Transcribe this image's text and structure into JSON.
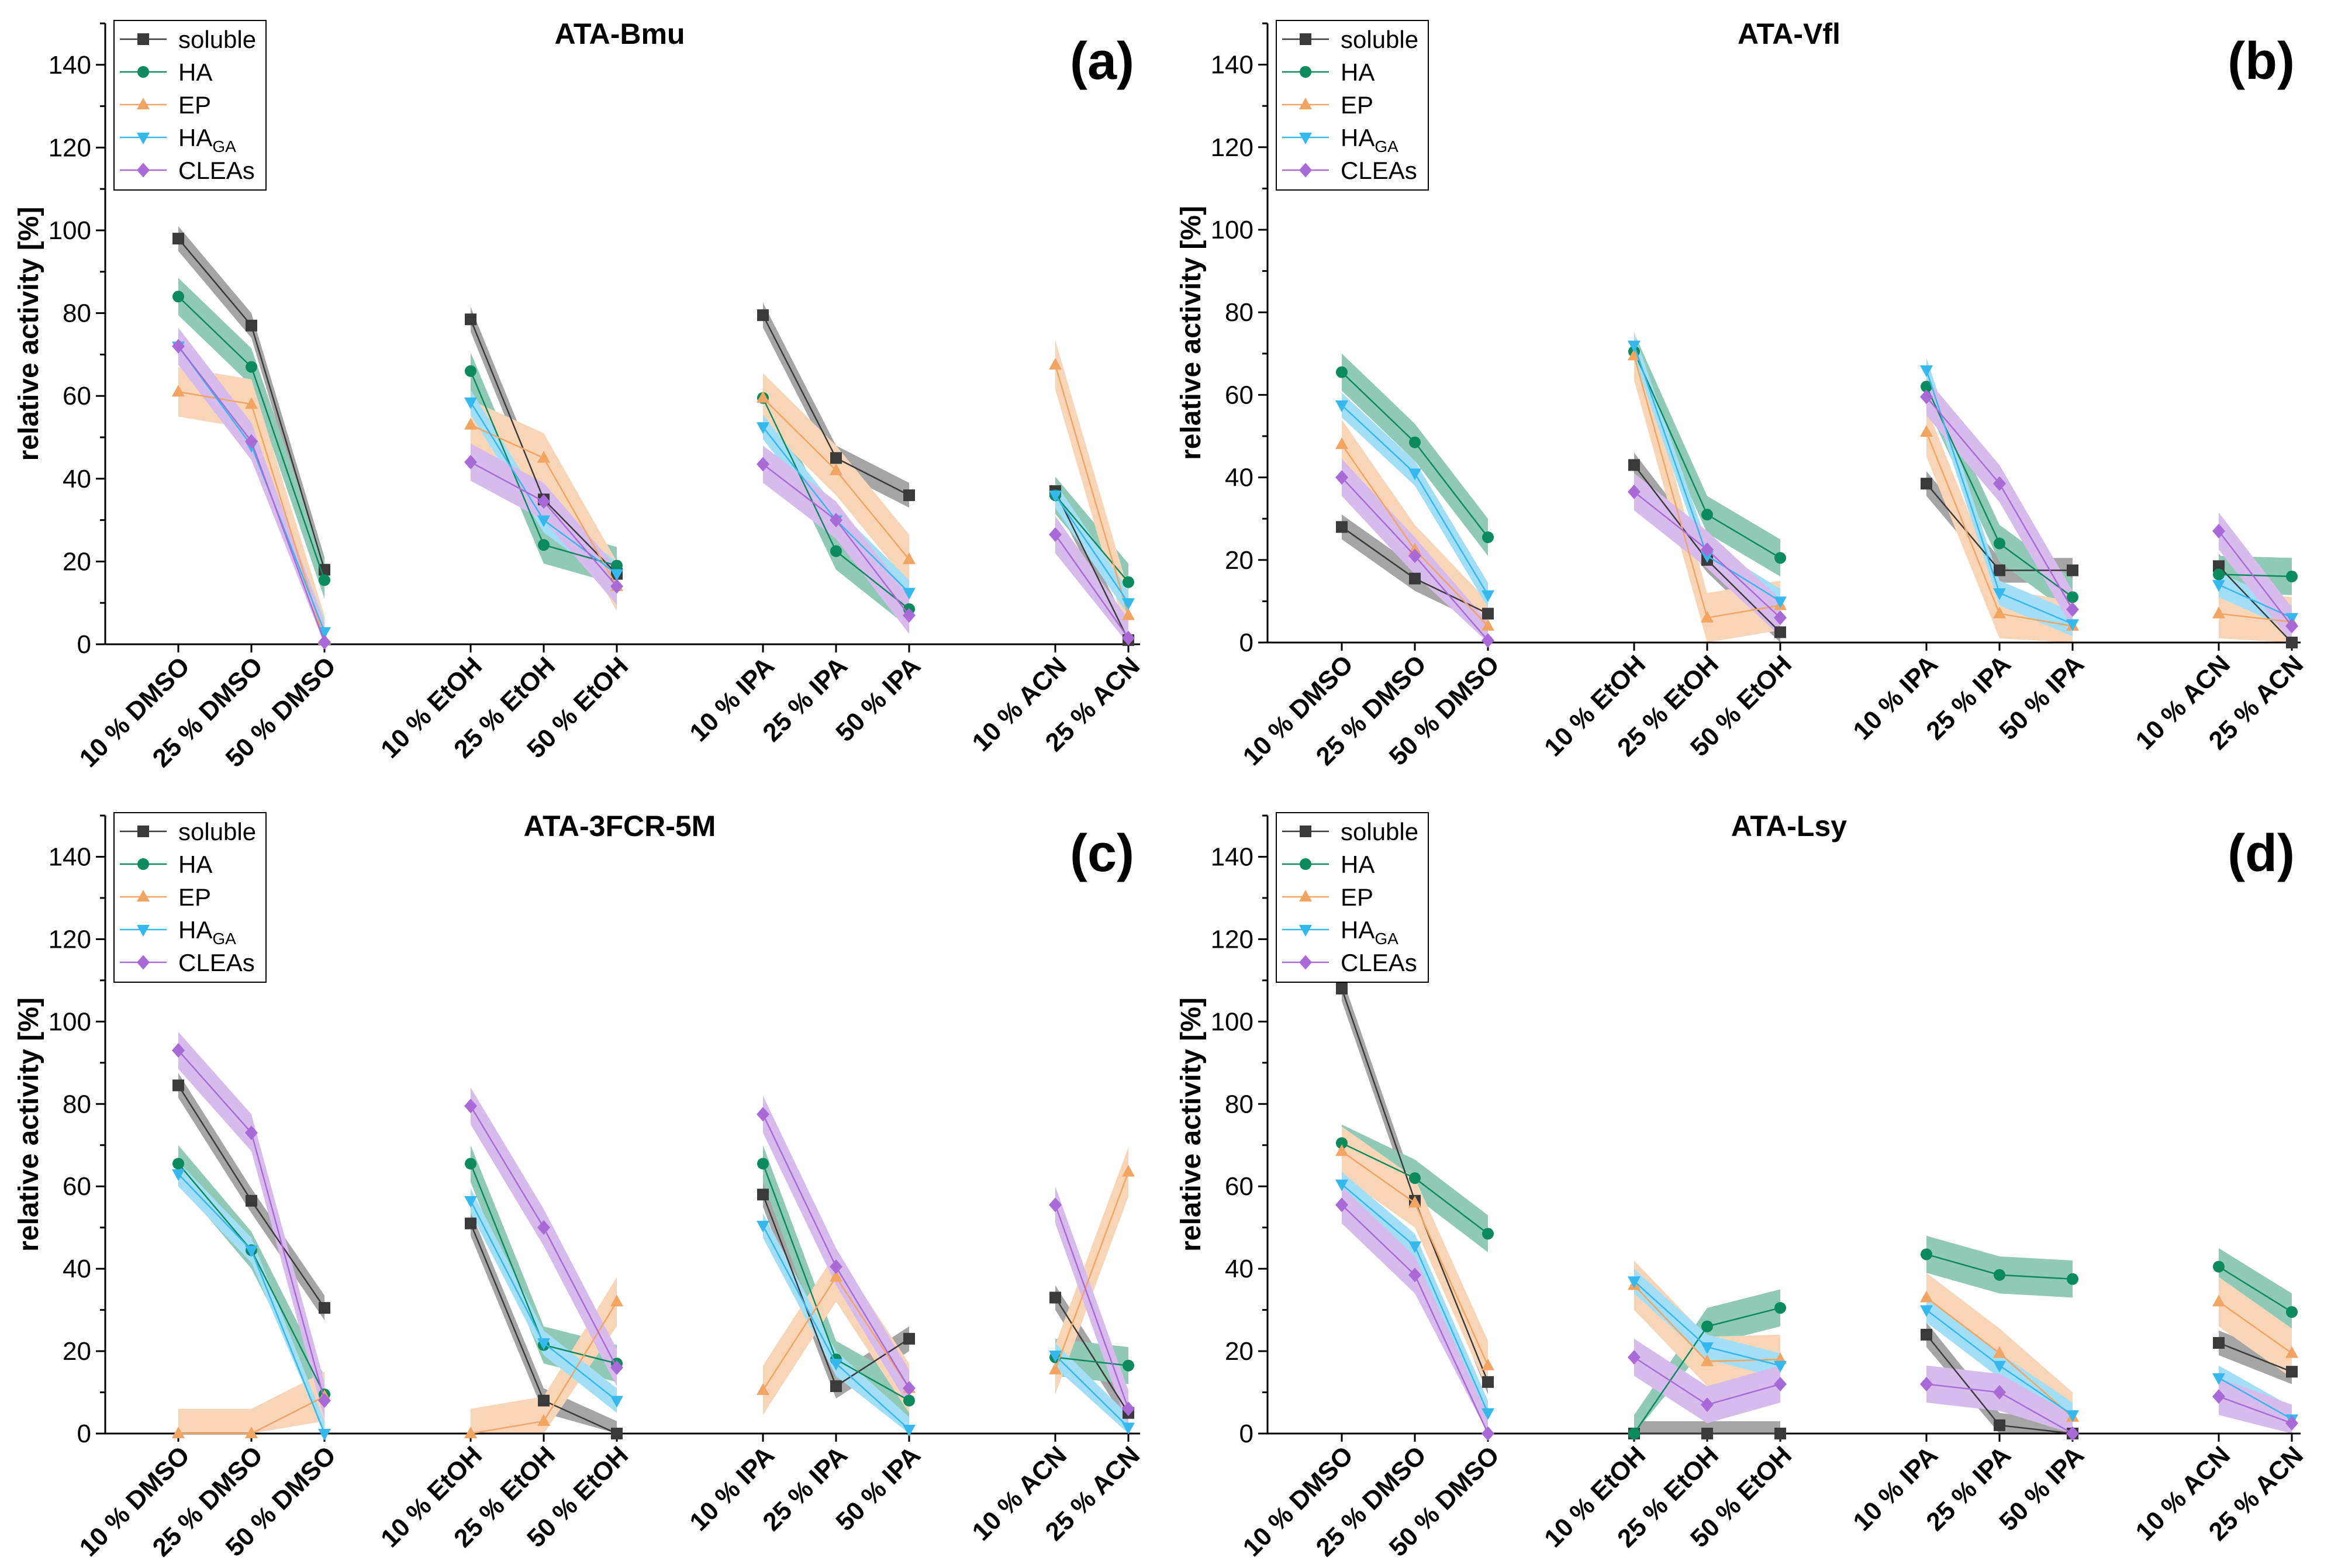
{
  "colors": {
    "soluble": "#3a3a3a",
    "HA": "#0b8a5e",
    "EP": "#f2a463",
    "HA_GA": "#35b8ee",
    "CLEAs": "#a96ad8",
    "axis": "#000000"
  },
  "legend": {
    "entries": [
      {
        "key": "soluble",
        "label": "soluble",
        "sub": "",
        "marker": "square"
      },
      {
        "key": "HA",
        "label": "HA",
        "sub": "",
        "marker": "circle"
      },
      {
        "key": "EP",
        "label": "EP",
        "sub": "",
        "marker": "triangle-up"
      },
      {
        "key": "HA_GA",
        "label": "HA",
        "sub": "GA",
        "marker": "triangle-down"
      },
      {
        "key": "CLEAs",
        "label": "CLEAs",
        "sub": "",
        "marker": "diamond"
      }
    ]
  },
  "chart_data": [
    {
      "type": "line",
      "panel": "(a)",
      "title": "ATA-Bmu",
      "ylabel": "relative activity [%]",
      "ylim": [
        0,
        150
      ],
      "yticks": [
        0,
        20,
        40,
        60,
        80,
        100,
        120,
        140
      ],
      "categories": [
        "10 % DMSO",
        "25 % DMSO",
        "50 % DMSO",
        "10 % EtOH",
        "25 % EtOH",
        "50 % EtOH",
        "10 % IPA",
        "25 % IPA",
        "50 % IPA",
        "10 % ACN",
        "25 % ACN"
      ],
      "series": [
        {
          "key": "soluble",
          "name": "soluble",
          "values": [
            98,
            77,
            18,
            78.5,
            35,
            17,
            79.5,
            45,
            36,
            37,
            1
          ]
        },
        {
          "key": "HA",
          "name": "HA",
          "values": [
            84,
            67,
            15.5,
            66,
            24,
            19,
            59.5,
            22.5,
            8.5,
            36,
            15
          ]
        },
        {
          "key": "EP",
          "name": "EP",
          "values": [
            61,
            58,
            1,
            53,
            45,
            14,
            59.5,
            42,
            20.5,
            67.5,
            7
          ]
        },
        {
          "key": "HA_GA",
          "name": "HA_GA",
          "values": [
            72,
            48,
            3,
            58.5,
            30,
            17,
            52.5,
            30,
            12.5,
            36,
            10
          ]
        },
        {
          "key": "CLEAs",
          "name": "CLEAs",
          "values": [
            72,
            49,
            0.5,
            44,
            34.5,
            14,
            43.5,
            30,
            7,
            26.5,
            1.5
          ]
        }
      ]
    },
    {
      "type": "line",
      "panel": "(b)",
      "title": "ATA-Vfl",
      "ylabel": "relative activity [%]",
      "ylim": [
        0,
        150
      ],
      "yticks": [
        0,
        20,
        40,
        60,
        80,
        100,
        120,
        140
      ],
      "categories": [
        "10 % DMSO",
        "25 % DMSO",
        "50 % DMSO",
        "10 % EtOH",
        "25 % EtOH",
        "50 % EtOH",
        "10 % IPA",
        "25 % IPA",
        "50 % IPA",
        "10 % ACN",
        "25 % ACN"
      ],
      "series": [
        {
          "key": "soluble",
          "name": "soluble",
          "values": [
            28,
            15.5,
            7,
            43,
            20,
            2.5,
            38.5,
            17.5,
            17.5,
            18.5,
            0
          ]
        },
        {
          "key": "HA",
          "name": "HA",
          "values": [
            65.5,
            48.5,
            25.5,
            70.5,
            31,
            20.5,
            62,
            24,
            11,
            16.5,
            16
          ]
        },
        {
          "key": "EP",
          "name": "EP",
          "values": [
            48,
            22.5,
            4,
            69.5,
            6,
            9,
            51,
            7,
            4,
            7,
            5
          ]
        },
        {
          "key": "HA_GA",
          "name": "HA_GA",
          "values": [
            57.5,
            41,
            11.5,
            72,
            21,
            10,
            66,
            12,
            4.5,
            14,
            6
          ]
        },
        {
          "key": "CLEAs",
          "name": "CLEAs",
          "values": [
            40,
            21,
            0.5,
            36.5,
            22.5,
            6,
            59.5,
            38.5,
            8,
            27,
            4
          ]
        }
      ]
    },
    {
      "type": "line",
      "panel": "(c)",
      "title": "ATA-3FCR-5M",
      "ylabel": "relative activity [%]",
      "ylim": [
        0,
        150
      ],
      "yticks": [
        0,
        20,
        40,
        60,
        80,
        100,
        120,
        140
      ],
      "categories": [
        "10 % DMSO",
        "25 % DMSO",
        "50 % DMSO",
        "10 % EtOH",
        "25 % EtOH",
        "50 % EtOH",
        "10 % IPA",
        "25 % IPA",
        "50 % IPA",
        "10 % ACN",
        "25 % ACN"
      ],
      "series": [
        {
          "key": "soluble",
          "name": "soluble",
          "values": [
            84.5,
            56.5,
            30.5,
            51,
            8,
            0,
            58,
            11.5,
            23,
            33,
            5
          ]
        },
        {
          "key": "HA",
          "name": "HA",
          "values": [
            65.5,
            44.5,
            9.5,
            65.5,
            21.5,
            17,
            65.5,
            18,
            8,
            18.5,
            16.5
          ]
        },
        {
          "key": "EP",
          "name": "EP",
          "values": [
            0,
            0,
            9,
            0,
            3,
            32,
            10.5,
            38,
            11,
            15.5,
            63.5
          ]
        },
        {
          "key": "HA_GA",
          "name": "HA_GA",
          "values": [
            63,
            44.5,
            0,
            56.5,
            22,
            8,
            50.5,
            17,
            1,
            19,
            1.5
          ]
        },
        {
          "key": "CLEAs",
          "name": "CLEAs",
          "values": [
            93,
            73,
            8,
            79.5,
            50,
            16,
            77.5,
            40.5,
            11,
            55.5,
            6
          ]
        }
      ]
    },
    {
      "type": "line",
      "panel": "(d)",
      "title": "ATA-Lsy",
      "ylabel": "relative activity [%]",
      "ylim": [
        0,
        150
      ],
      "yticks": [
        0,
        20,
        40,
        60,
        80,
        100,
        120,
        140
      ],
      "categories": [
        "10 % DMSO",
        "25 % DMSO",
        "50 % DMSO",
        "10 % EtOH",
        "25 % EtOH",
        "50 % EtOH",
        "10 % IPA",
        "25 % IPA",
        "50 % IPA",
        "10 % ACN",
        "25 % ACN"
      ],
      "series": [
        {
          "key": "soluble",
          "name": "soluble",
          "values": [
            108,
            56.5,
            12.5,
            0,
            0,
            0,
            24,
            2,
            0,
            22,
            15
          ]
        },
        {
          "key": "HA",
          "name": "HA",
          "values": [
            70.5,
            62,
            48.5,
            0,
            26,
            30.5,
            43.5,
            38.5,
            37.5,
            40.5,
            29.5
          ]
        },
        {
          "key": "EP",
          "name": "EP",
          "values": [
            68.5,
            56,
            16.5,
            36,
            17.5,
            18,
            33,
            19.5,
            4,
            32,
            19.5
          ]
        },
        {
          "key": "HA_GA",
          "name": "HA_GA",
          "values": [
            60.5,
            45.5,
            5,
            37,
            21,
            16.5,
            30,
            16.5,
            4.5,
            13.5,
            3.5
          ]
        },
        {
          "key": "CLEAs",
          "name": "CLEAs",
          "values": [
            55.5,
            38.5,
            0,
            18.5,
            7,
            12,
            12,
            10,
            0,
            9,
            2.5
          ]
        }
      ]
    }
  ]
}
